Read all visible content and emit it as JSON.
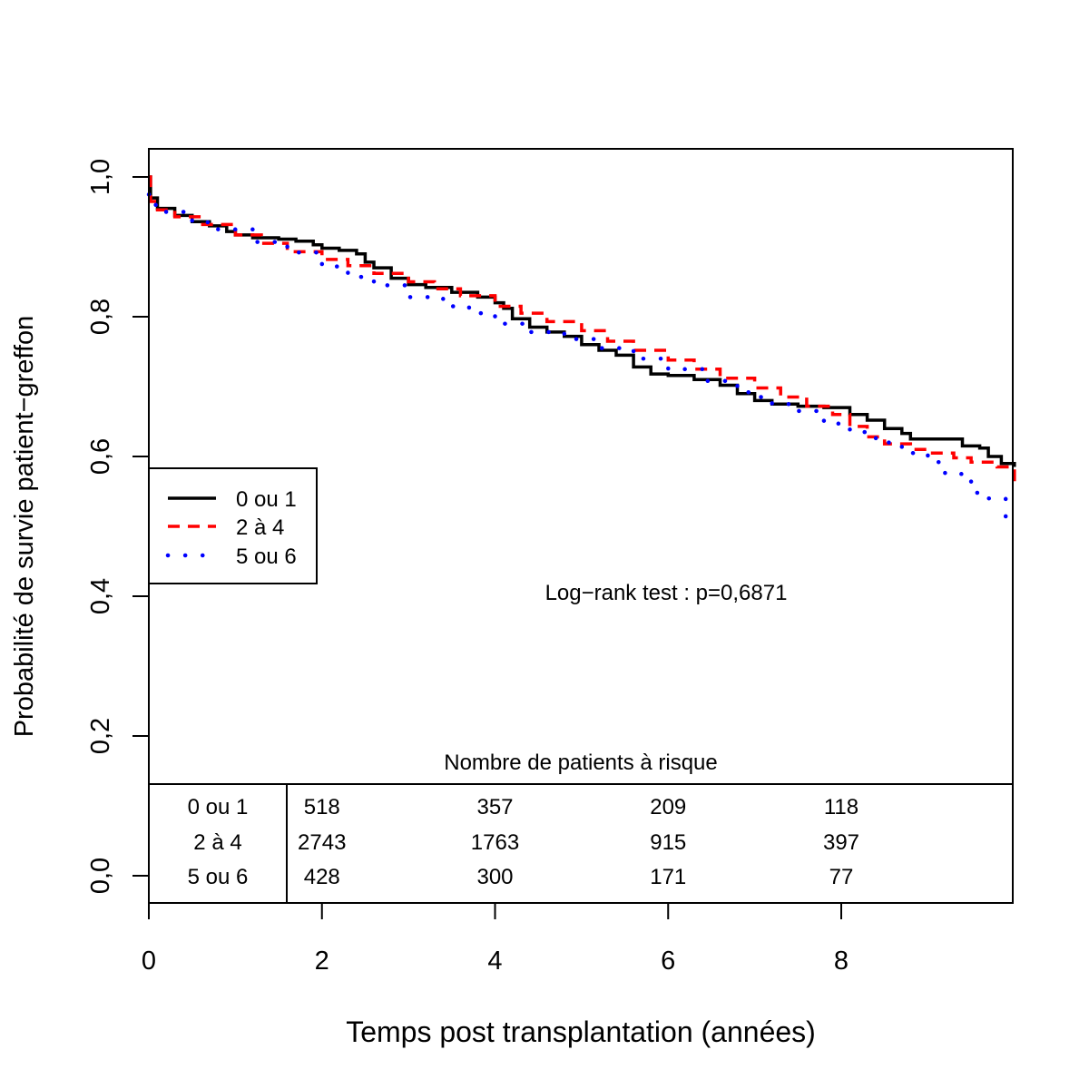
{
  "chart_data": {
    "type": "line",
    "title": "",
    "xlabel": "Temps post transplantation (années)",
    "ylabel": "Probabilité de survie patient−greffon",
    "xlim": [
      0,
      10
    ],
    "ylim": [
      0,
      1.04
    ],
    "x_ticks": [
      0,
      2,
      4,
      6,
      8
    ],
    "x_tick_labels": [
      "0",
      "2",
      "4",
      "6",
      "8"
    ],
    "y_ticks": [
      0,
      0.2,
      0.4,
      0.6,
      0.8,
      1.0
    ],
    "y_tick_labels": [
      "0,0",
      "0,2",
      "0,4",
      "0,6",
      "0,8",
      "1,0"
    ],
    "grid": false,
    "legend_position": "left",
    "annotation": "Log−rank test : p=0,6871",
    "series": [
      {
        "name": "0 ou 1",
        "color": "#000000",
        "style": "solid",
        "points": [
          [
            0,
            1.0
          ],
          [
            0.02,
            0.97
          ],
          [
            0.1,
            0.955
          ],
          [
            0.3,
            0.945
          ],
          [
            0.5,
            0.936
          ],
          [
            0.7,
            0.93
          ],
          [
            0.9,
            0.922
          ],
          [
            1.0,
            0.917
          ],
          [
            1.2,
            0.913
          ],
          [
            1.5,
            0.911
          ],
          [
            1.7,
            0.908
          ],
          [
            1.9,
            0.903
          ],
          [
            2.0,
            0.898
          ],
          [
            2.2,
            0.895
          ],
          [
            2.4,
            0.89
          ],
          [
            2.5,
            0.878
          ],
          [
            2.6,
            0.87
          ],
          [
            2.8,
            0.855
          ],
          [
            3.0,
            0.846
          ],
          [
            3.2,
            0.842
          ],
          [
            3.5,
            0.835
          ],
          [
            3.8,
            0.828
          ],
          [
            4.0,
            0.82
          ],
          [
            4.1,
            0.812
          ],
          [
            4.2,
            0.797
          ],
          [
            4.4,
            0.785
          ],
          [
            4.6,
            0.778
          ],
          [
            4.8,
            0.772
          ],
          [
            5.0,
            0.76
          ],
          [
            5.2,
            0.752
          ],
          [
            5.4,
            0.745
          ],
          [
            5.6,
            0.728
          ],
          [
            5.8,
            0.718
          ],
          [
            6.0,
            0.716
          ],
          [
            6.3,
            0.71
          ],
          [
            6.6,
            0.702
          ],
          [
            6.8,
            0.69
          ],
          [
            7.0,
            0.68
          ],
          [
            7.2,
            0.675
          ],
          [
            7.5,
            0.672
          ],
          [
            7.8,
            0.67
          ],
          [
            8.1,
            0.66
          ],
          [
            8.3,
            0.652
          ],
          [
            8.5,
            0.64
          ],
          [
            8.7,
            0.633
          ],
          [
            8.8,
            0.625
          ],
          [
            9.0,
            0.625
          ],
          [
            9.3,
            0.625
          ],
          [
            9.4,
            0.615
          ],
          [
            9.6,
            0.612
          ],
          [
            9.7,
            0.6
          ],
          [
            9.85,
            0.59
          ],
          [
            10.0,
            0.585
          ]
        ]
      },
      {
        "name": "2 à 4",
        "color": "#ff0000",
        "style": "dashed",
        "points": [
          [
            0,
            1.0
          ],
          [
            0.02,
            0.965
          ],
          [
            0.1,
            0.953
          ],
          [
            0.3,
            0.943
          ],
          [
            0.6,
            0.932
          ],
          [
            1.0,
            0.917
          ],
          [
            1.3,
            0.905
          ],
          [
            1.6,
            0.893
          ],
          [
            2.0,
            0.882
          ],
          [
            2.3,
            0.873
          ],
          [
            2.6,
            0.862
          ],
          [
            3.0,
            0.85
          ],
          [
            3.3,
            0.84
          ],
          [
            3.6,
            0.83
          ],
          [
            4.0,
            0.815
          ],
          [
            4.3,
            0.805
          ],
          [
            4.6,
            0.793
          ],
          [
            5.0,
            0.78
          ],
          [
            5.3,
            0.765
          ],
          [
            5.6,
            0.752
          ],
          [
            6.0,
            0.738
          ],
          [
            6.3,
            0.725
          ],
          [
            6.6,
            0.712
          ],
          [
            7.0,
            0.698
          ],
          [
            7.3,
            0.685
          ],
          [
            7.6,
            0.672
          ],
          [
            7.9,
            0.66
          ],
          [
            8.1,
            0.643
          ],
          [
            8.3,
            0.628
          ],
          [
            8.5,
            0.618
          ],
          [
            8.8,
            0.61
          ],
          [
            9.0,
            0.605
          ],
          [
            9.3,
            0.598
          ],
          [
            9.5,
            0.592
          ],
          [
            9.8,
            0.585
          ],
          [
            10.0,
            0.56
          ]
        ]
      },
      {
        "name": "5 ou 6",
        "color": "#0000ff",
        "style": "dotted",
        "points": [
          [
            0,
            0.975
          ],
          [
            0.05,
            0.96
          ],
          [
            0.2,
            0.95
          ],
          [
            0.5,
            0.935
          ],
          [
            0.8,
            0.925
          ],
          [
            1.2,
            0.907
          ],
          [
            1.6,
            0.892
          ],
          [
            2.0,
            0.872
          ],
          [
            2.3,
            0.857
          ],
          [
            2.6,
            0.845
          ],
          [
            3.0,
            0.828
          ],
          [
            3.4,
            0.815
          ],
          [
            3.7,
            0.805
          ],
          [
            4.0,
            0.79
          ],
          [
            4.4,
            0.778
          ],
          [
            4.8,
            0.768
          ],
          [
            5.2,
            0.755
          ],
          [
            5.6,
            0.74
          ],
          [
            6.0,
            0.725
          ],
          [
            6.4,
            0.708
          ],
          [
            6.8,
            0.692
          ],
          [
            7.0,
            0.685
          ],
          [
            7.2,
            0.675
          ],
          [
            7.5,
            0.665
          ],
          [
            7.8,
            0.647
          ],
          [
            8.1,
            0.635
          ],
          [
            8.4,
            0.62
          ],
          [
            8.7,
            0.605
          ],
          [
            9.0,
            0.592
          ],
          [
            9.2,
            0.575
          ],
          [
            9.5,
            0.548
          ],
          [
            9.7,
            0.54
          ],
          [
            9.9,
            0.5
          ]
        ]
      }
    ],
    "risk_table": {
      "title": "Nombre de patients à risque",
      "times": [
        2,
        4,
        6,
        8
      ],
      "rows": [
        {
          "label": "0 ou 1",
          "values": [
            "518",
            "357",
            "209",
            "118"
          ]
        },
        {
          "label": "2 à 4",
          "values": [
            "2743",
            "1763",
            "915",
            "397"
          ]
        },
        {
          "label": "5 ou 6",
          "values": [
            "428",
            "300",
            "171",
            "77"
          ]
        }
      ]
    }
  }
}
